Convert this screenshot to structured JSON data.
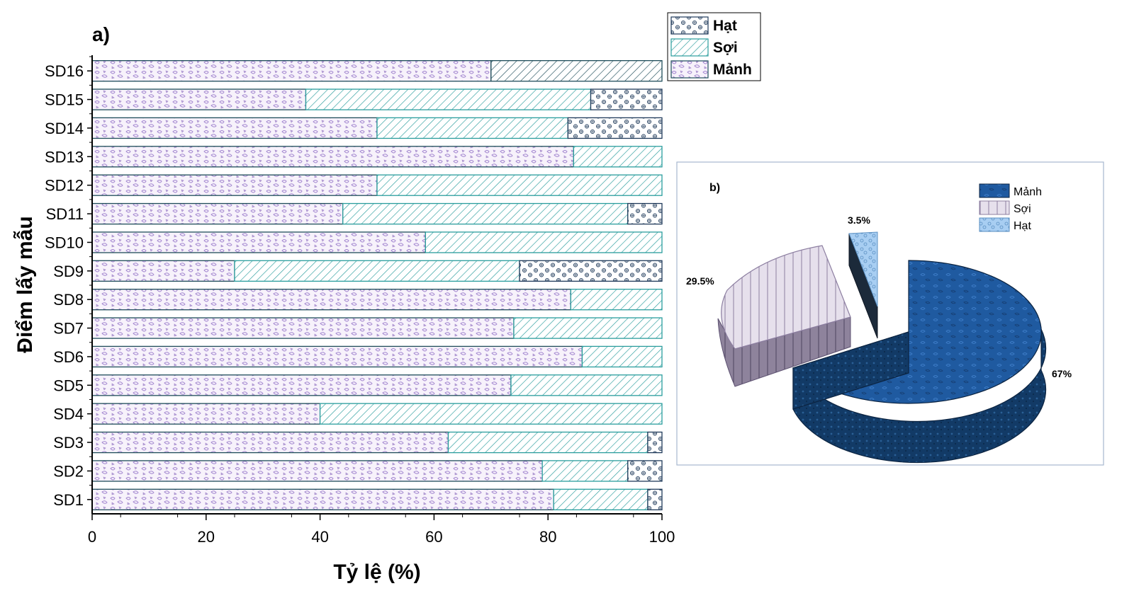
{
  "chart_data": [
    {
      "panel": "a)",
      "type": "bar",
      "orientation": "horizontal",
      "stacked": true,
      "xlabel": "Tỷ lệ (%)",
      "ylabel": "Điểm lấy mẫu",
      "xlim": [
        0,
        100
      ],
      "xticks": [
        0,
        20,
        40,
        60,
        80,
        100
      ],
      "categories": [
        "SD16",
        "SD15",
        "SD14",
        "SD13",
        "SD12",
        "SD11",
        "SD10",
        "SD9",
        "SD8",
        "SD7",
        "SD6",
        "SD5",
        "SD4",
        "SD3",
        "SD2",
        "SD1"
      ],
      "series": [
        {
          "name": "Mảnh",
          "color": "#9b7fc4",
          "values": [
            70,
            37.5,
            50,
            84.5,
            50,
            44,
            58.5,
            25,
            84,
            74,
            86,
            73.5,
            40,
            62.5,
            79,
            81
          ]
        },
        {
          "name": "Sợi",
          "color": "#2a9d9d",
          "values": [
            30,
            50,
            33.5,
            15.5,
            50,
            50,
            41.5,
            50,
            16,
            26,
            14,
            26.5,
            60,
            35,
            15,
            16.5
          ]
        },
        {
          "name": "Hạt",
          "color": "#1f3a5a",
          "values": [
            0,
            12.5,
            16.5,
            0,
            0,
            6,
            0,
            25,
            0,
            0,
            0,
            0,
            0,
            2.5,
            6,
            2.5
          ]
        }
      ],
      "legend": {
        "entries": [
          "Hạt",
          "Sợi",
          "Mảnh"
        ],
        "position": "top-right"
      }
    },
    {
      "panel": "b)",
      "type": "pie",
      "style": "3d-exploded",
      "labels": [
        "Mảnh",
        "Sợi",
        "Hạt"
      ],
      "values": [
        67,
        29.5,
        3.5
      ],
      "value_labels": [
        "67%",
        "29.5%",
        "3.5%"
      ],
      "colors": [
        "#1f5aa0",
        "#ddd6e6",
        "#a8cef2"
      ],
      "legend": {
        "entries": [
          "Mảnh",
          "Sợi",
          "Hạt"
        ],
        "position": "top-right"
      }
    }
  ]
}
